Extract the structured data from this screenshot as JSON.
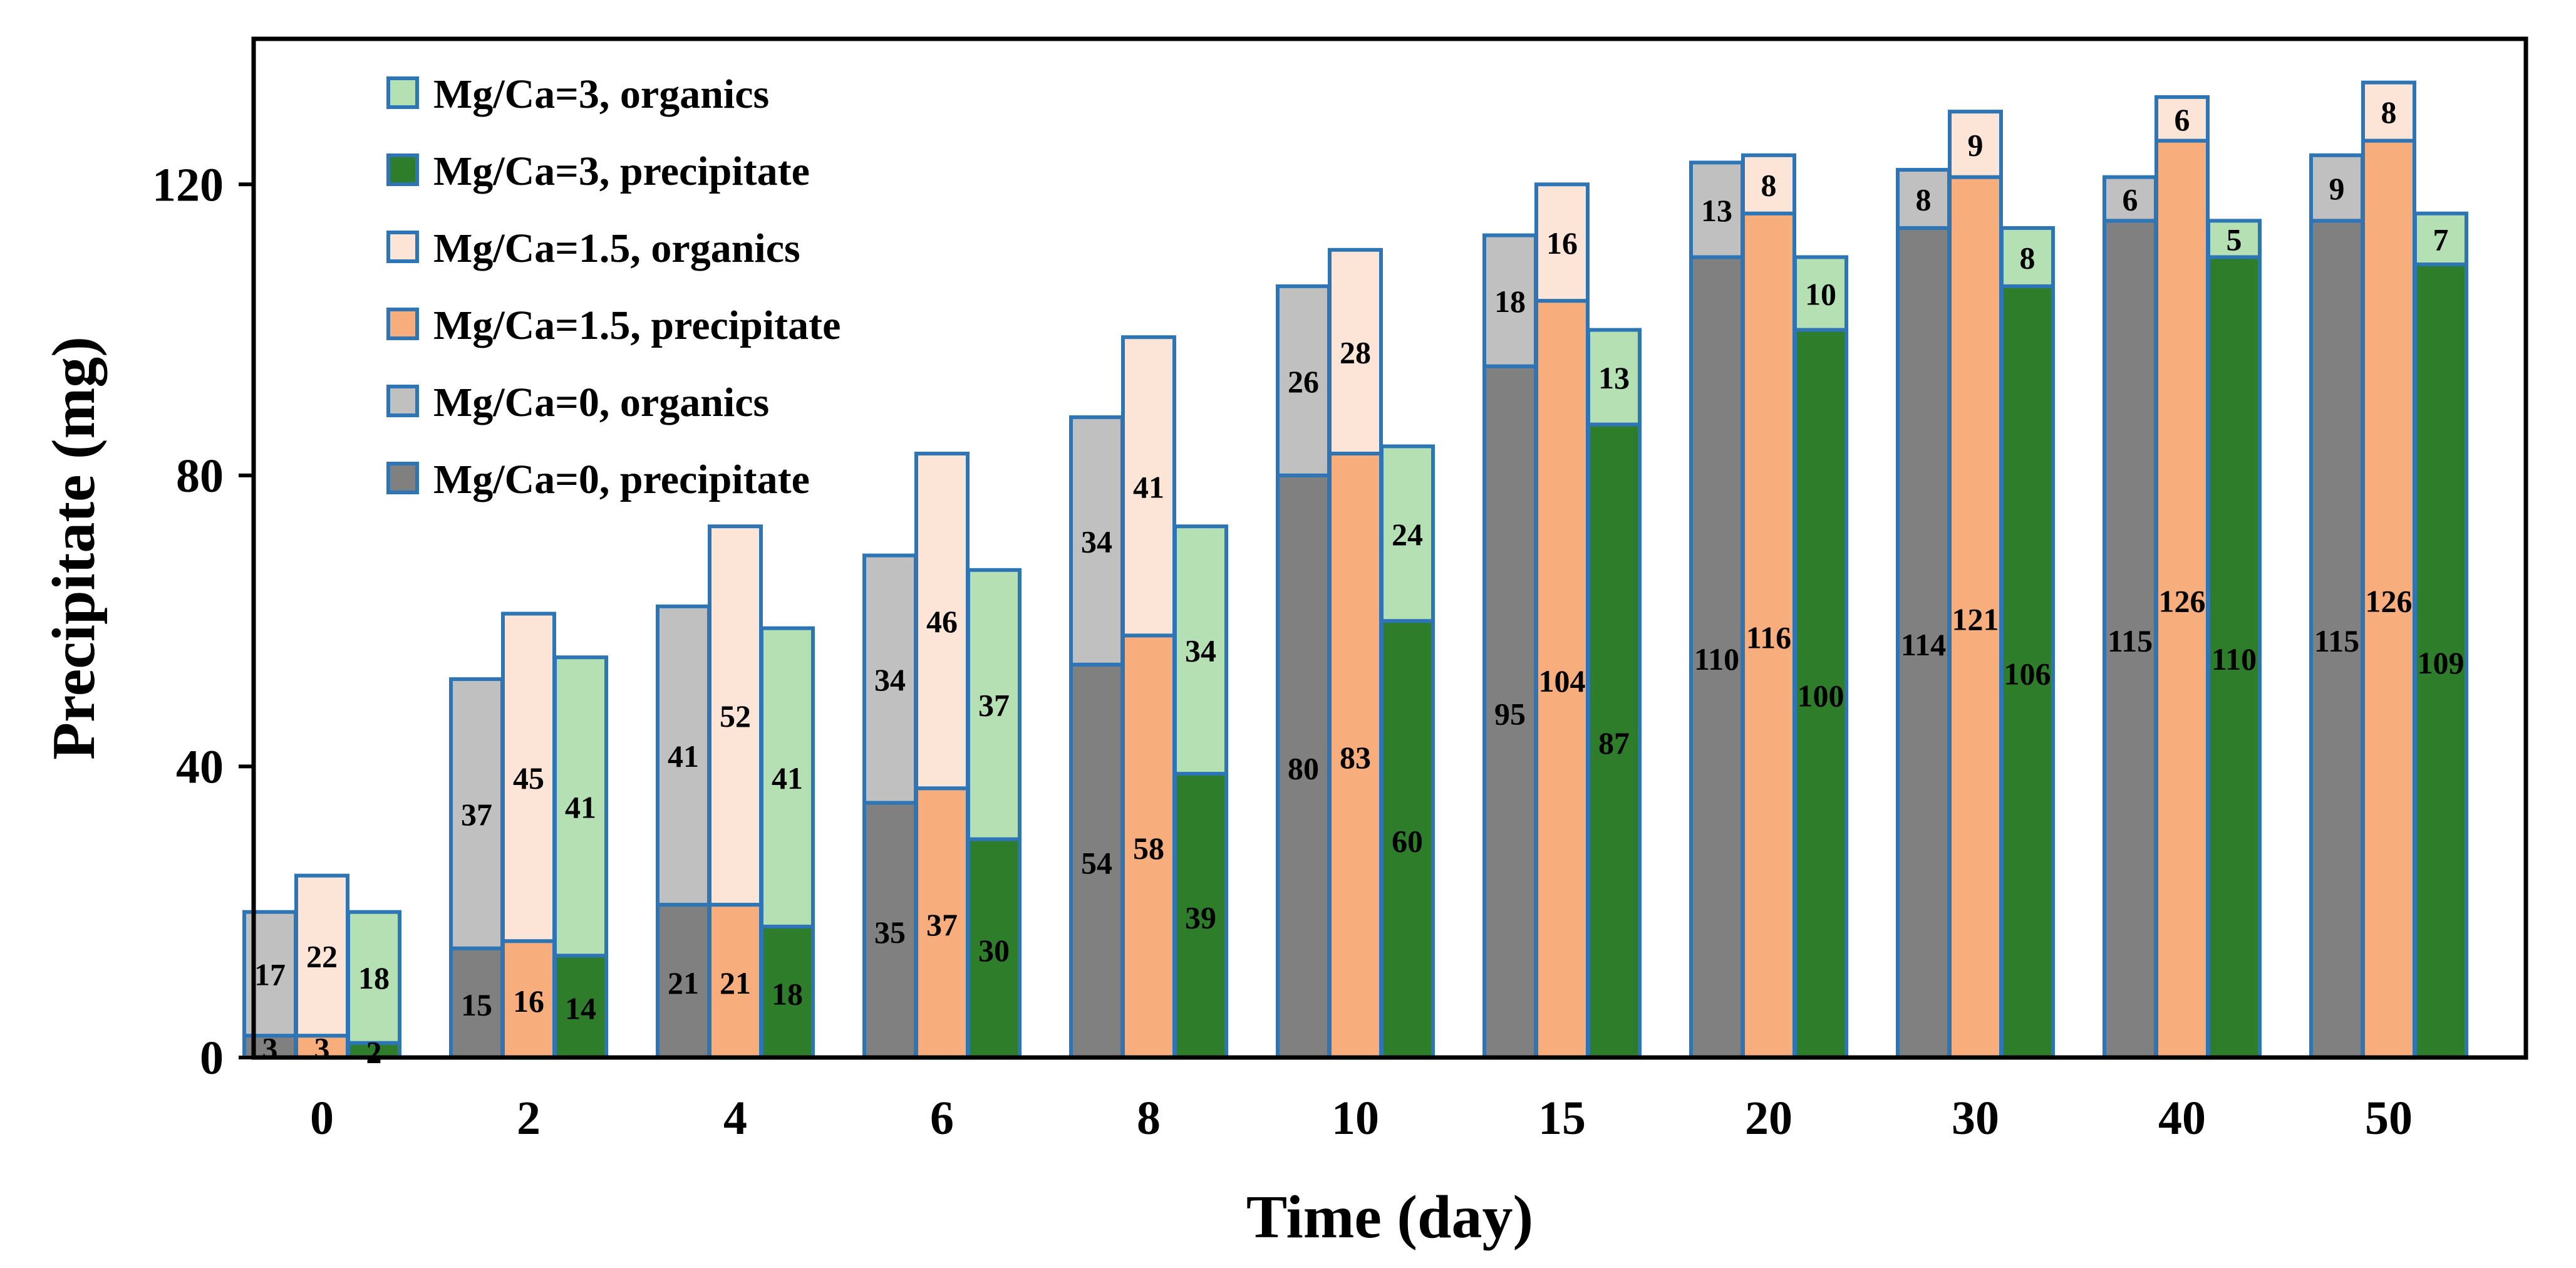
{
  "chart_data": {
    "type": "bar",
    "stacked": true,
    "xlabel": "Time (day)",
    "ylabel": "Precipitate (mg)",
    "categories": [
      "0",
      "2",
      "4",
      "6",
      "8",
      "10",
      "15",
      "20",
      "30",
      "40",
      "50"
    ],
    "ylim": [
      0,
      140
    ],
    "yticks": [
      0,
      40,
      80,
      120
    ],
    "grid": false,
    "legend_position": "top-left, inside plot",
    "colors": {
      "mg0_precipitate": "#808080",
      "mg0_organics": "#c0c0c0",
      "mg15_precipitate": "#f8ad7c",
      "mg15_organics": "#fce4d6",
      "mg3_precipitate": "#2e7d2a",
      "mg3_organics": "#b4e0b4",
      "bar_edge": "#2e75b6",
      "axis": "#000000",
      "text": "#000000"
    },
    "groups": [
      {
        "name": "Mg/Ca=0",
        "precipitate": [
          3,
          15,
          21,
          35,
          54,
          80,
          95,
          110,
          114,
          115,
          115
        ],
        "organics": [
          17,
          37,
          41,
          34,
          34,
          26,
          18,
          13,
          8,
          6,
          9
        ],
        "precipitate_color": "mg0_precipitate",
        "organics_color": "mg0_organics"
      },
      {
        "name": "Mg/Ca=1.5",
        "precipitate": [
          3,
          16,
          21,
          37,
          58,
          83,
          104,
          116,
          121,
          126,
          126
        ],
        "organics": [
          22,
          45,
          52,
          46,
          41,
          28,
          16,
          8,
          9,
          6,
          8
        ],
        "precipitate_color": "mg15_precipitate",
        "organics_color": "mg15_organics"
      },
      {
        "name": "Mg/Ca=3",
        "precipitate": [
          2,
          14,
          18,
          30,
          39,
          60,
          87,
          100,
          106,
          110,
          109
        ],
        "organics": [
          18,
          41,
          41,
          37,
          34,
          24,
          13,
          10,
          8,
          5,
          7
        ],
        "precipitate_color": "mg3_precipitate",
        "organics_color": "mg3_organics"
      }
    ],
    "legend": [
      {
        "label": "Mg/Ca=3, organics",
        "color": "mg3_organics"
      },
      {
        "label": "Mg/Ca=3, precipitate",
        "color": "mg3_precipitate"
      },
      {
        "label": "Mg/Ca=1.5, organics",
        "color": "mg15_organics"
      },
      {
        "label": "Mg/Ca=1.5, precipitate",
        "color": "mg15_precipitate"
      },
      {
        "label": "Mg/Ca=0, organics",
        "color": "mg0_organics"
      },
      {
        "label": "Mg/Ca=0, precipitate",
        "color": "mg0_precipitate"
      }
    ]
  }
}
